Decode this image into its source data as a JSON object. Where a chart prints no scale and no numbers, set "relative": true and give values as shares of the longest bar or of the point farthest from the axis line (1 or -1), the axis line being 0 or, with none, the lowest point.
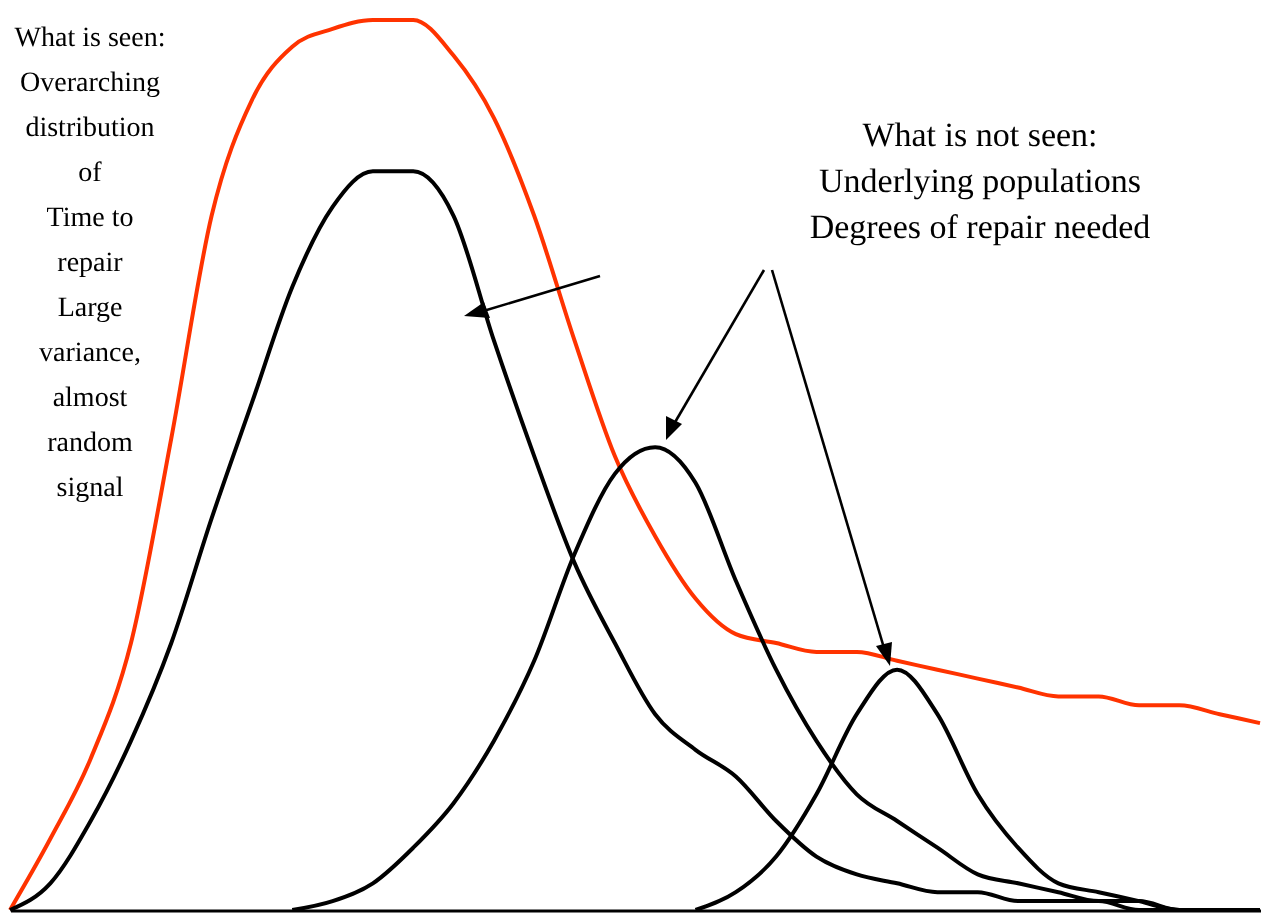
{
  "chart_data": {
    "type": "line",
    "relative": true,
    "categories": [
      null,
      null,
      null,
      null,
      null,
      null,
      null,
      null,
      null,
      null,
      null,
      null,
      null,
      null,
      null,
      null,
      null,
      null,
      null,
      null,
      null,
      null,
      null,
      null,
      null,
      null,
      null,
      null,
      null,
      null,
      null,
      null
    ],
    "series": [
      {
        "color": "#ff3300",
        "values": [
          0,
          0.08,
          0.17,
          0.3,
          0.53,
          0.78,
          0.91,
          0.97,
          0.99,
          1,
          1,
          0.96,
          0.89,
          0.78,
          0.64,
          0.51,
          0.42,
          0.35,
          0.31,
          0.3,
          0.29,
          0.29,
          0.28,
          0.27,
          0.26,
          0.25,
          0.24,
          0.24,
          0.23,
          0.23,
          0.22,
          0.21
        ]
      },
      {
        "color": "#000000",
        "values": [
          0,
          0.03,
          0.1,
          0.19,
          0.3,
          0.44,
          0.57,
          0.7,
          0.79,
          0.83,
          0.83,
          0.78,
          0.64,
          0.51,
          0.39,
          0.3,
          0.22,
          0.18,
          0.15,
          0.1,
          0.06,
          0.04,
          0.03,
          0.02,
          0.02,
          0.01,
          0.01,
          0.01,
          0,
          0,
          0,
          0
        ]
      },
      {
        "color": "#000000",
        "values": [
          null,
          null,
          null,
          null,
          null,
          null,
          null,
          0,
          0.01,
          0.03,
          0.07,
          0.12,
          0.19,
          0.28,
          0.4,
          0.49,
          0.52,
          0.48,
          0.37,
          0.27,
          0.19,
          0.13,
          0.1,
          0.07,
          0.04,
          0.03,
          0.02,
          0.01,
          0.01,
          0,
          0,
          0
        ]
      },
      {
        "color": "#000000",
        "values": [
          null,
          null,
          null,
          null,
          null,
          null,
          null,
          null,
          null,
          null,
          null,
          null,
          null,
          null,
          null,
          null,
          null,
          0,
          0.02,
          0.06,
          0.13,
          0.22,
          0.27,
          0.22,
          0.13,
          0.07,
          0.03,
          0.02,
          0.01,
          0,
          0,
          0
        ]
      }
    ],
    "annotations": [
      "What is seen:\nOverarching\ndistribution\nof\nTime to\nrepair\nLarge\nvariance,\nalmost\nrandom\nsignal",
      "What is not seen:\nUnderlying populations\nDegrees of repair needed"
    ]
  }
}
